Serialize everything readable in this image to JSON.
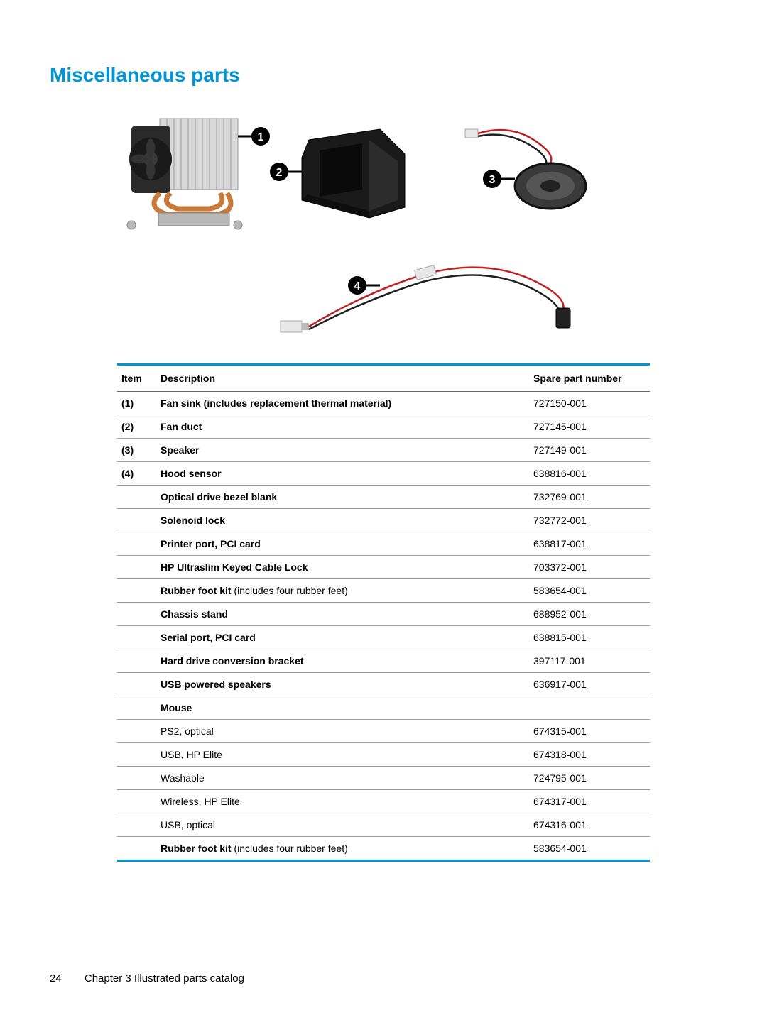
{
  "title": "Miscellaneous parts",
  "title_color": "#0096d6",
  "callouts": [
    "1",
    "2",
    "3",
    "4"
  ],
  "table": {
    "columns": {
      "item": "Item",
      "description": "Description",
      "part": "Spare part number"
    },
    "rows": [
      {
        "item": "(1)",
        "desc": "Fan sink (includes replacement thermal material)",
        "bold": true,
        "part": "727150-001"
      },
      {
        "item": "(2)",
        "desc": "Fan duct",
        "bold": true,
        "part": "727145-001"
      },
      {
        "item": "(3)",
        "desc": "Speaker",
        "bold": true,
        "part": "727149-001"
      },
      {
        "item": "(4)",
        "desc": "Hood sensor",
        "bold": true,
        "part": "638816-001"
      },
      {
        "item": "",
        "desc": "Optical drive bezel blank",
        "bold": true,
        "part": "732769-001"
      },
      {
        "item": "",
        "desc": "Solenoid lock",
        "bold": true,
        "part": "732772-001"
      },
      {
        "item": "",
        "desc": "Printer port, PCI card",
        "bold": true,
        "part": "638817-001"
      },
      {
        "item": "",
        "desc": "HP Ultraslim Keyed Cable Lock",
        "bold": true,
        "part": "703372-001"
      },
      {
        "item": "",
        "desc_html": "<b>Rubber foot kit</b> (includes four rubber feet)",
        "bold": false,
        "part": "583654-001"
      },
      {
        "item": "",
        "desc": "Chassis stand",
        "bold": true,
        "part": "688952-001"
      },
      {
        "item": "",
        "desc": "Serial port, PCI card",
        "bold": true,
        "part": "638815-001"
      },
      {
        "item": "",
        "desc": "Hard drive conversion bracket",
        "bold": true,
        "part": "397117-001"
      },
      {
        "item": "",
        "desc": "USB powered speakers",
        "bold": true,
        "part": "636917-001"
      },
      {
        "item": "",
        "desc": "Mouse",
        "bold": true,
        "part": "",
        "subhead": true
      },
      {
        "item": "",
        "desc": "PS2, optical",
        "bold": false,
        "part": "674315-001"
      },
      {
        "item": "",
        "desc": "USB, HP Elite",
        "bold": false,
        "part": "674318-001"
      },
      {
        "item": "",
        "desc": "Washable",
        "bold": false,
        "part": "724795-001"
      },
      {
        "item": "",
        "desc": "Wireless, HP Elite",
        "bold": false,
        "part": "674317-001"
      },
      {
        "item": "",
        "desc": "USB, optical",
        "bold": false,
        "part": "674316-001"
      },
      {
        "item": "",
        "desc_html": "<b>Rubber foot kit</b> (includes four rubber feet)",
        "bold": false,
        "part": "583654-001"
      }
    ]
  },
  "footer": {
    "page": "24",
    "chapter": "Chapter 3   Illustrated parts catalog"
  },
  "figure": {
    "callout_fill": "#000000",
    "callout_text": "#ffffff",
    "metal": "#d8d8d8",
    "metal_dark": "#b8b8b8",
    "copper": "#c87a3a",
    "fan": "#2a2a2a",
    "plastic": "#1a1a1a",
    "wire_red": "#c02020",
    "wire_black": "#202020",
    "speaker_body": "#3a3a3a",
    "speaker_cone": "#555555",
    "sensor": "#222222",
    "connector": "#e8e8e8"
  }
}
